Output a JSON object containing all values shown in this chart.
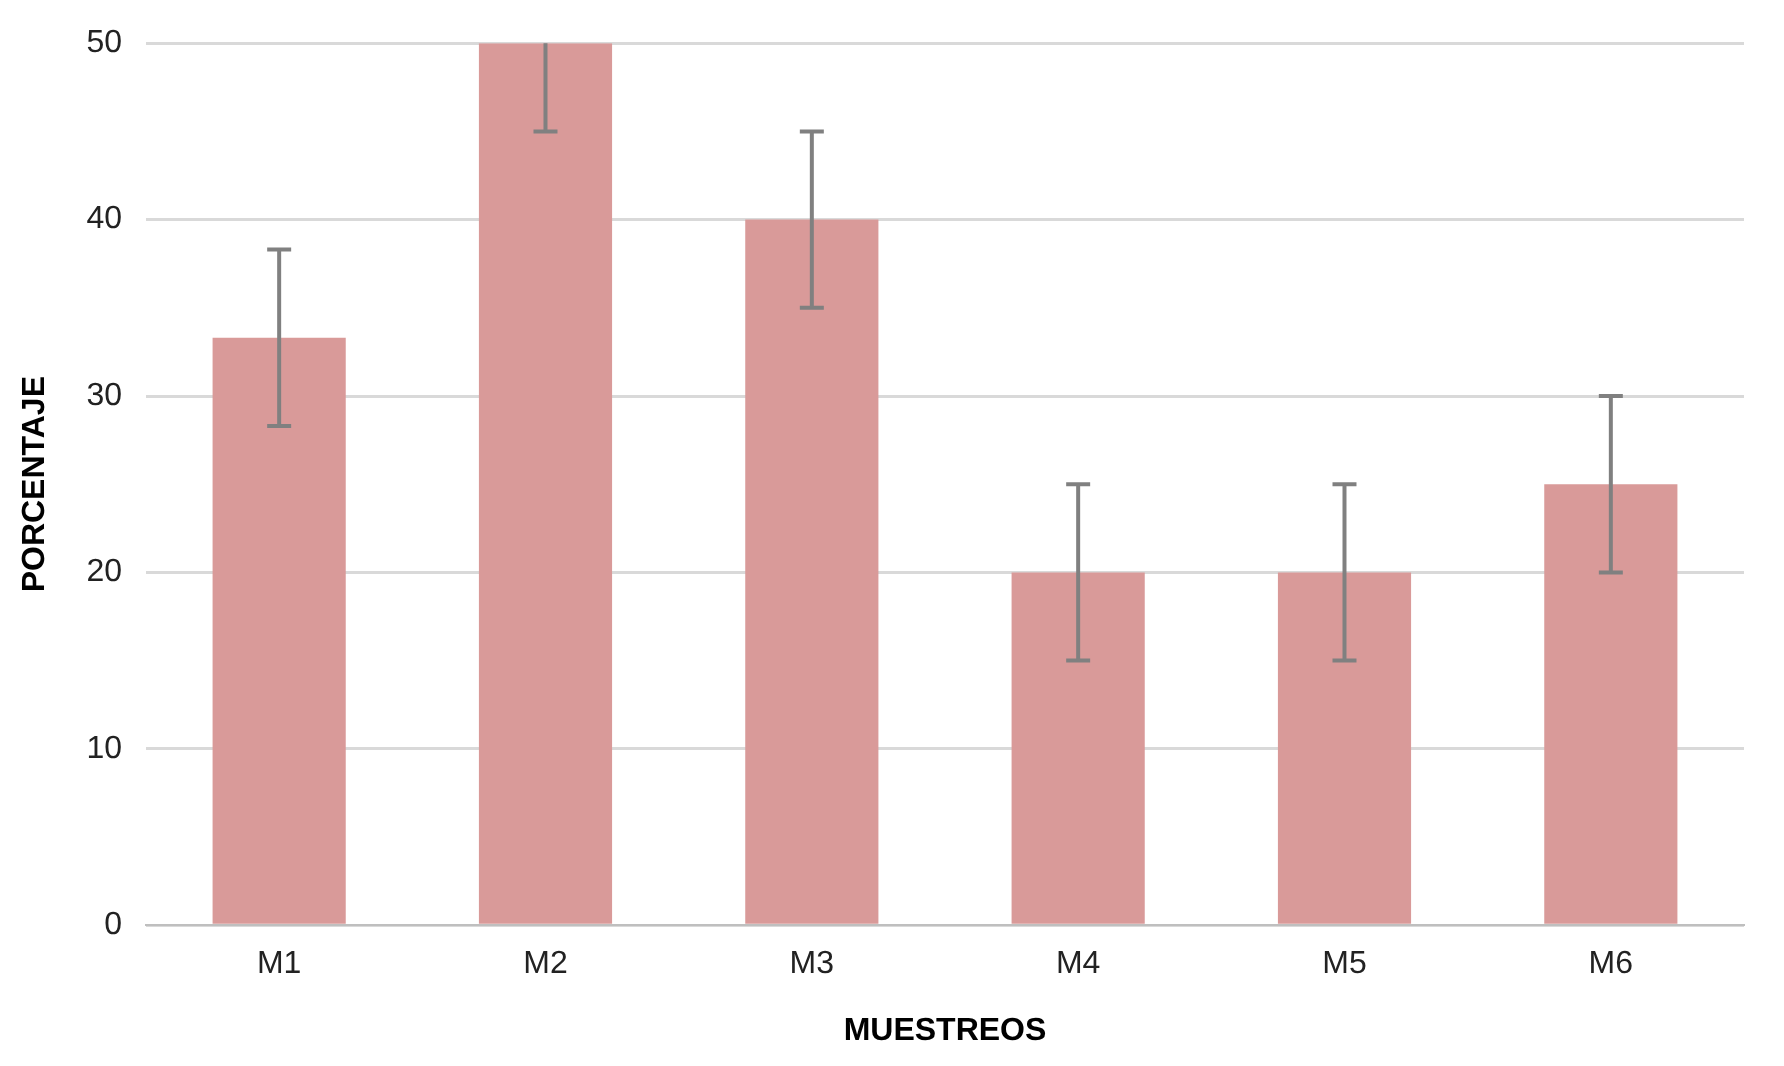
{
  "chart_data": {
    "type": "bar",
    "xlabel": "MUESTREOS",
    "ylabel": "PORCENTAJE",
    "categories": [
      "M1",
      "M2",
      "M3",
      "M4",
      "M5",
      "M6"
    ],
    "values": [
      33.3,
      50,
      40,
      20,
      20,
      25
    ],
    "errors": [
      5,
      [
        45,
        50
      ],
      5,
      5,
      5,
      5
    ],
    "color": "#d99a99",
    "ylim": [
      0,
      50
    ],
    "yticks": [
      0,
      10,
      20,
      30,
      40,
      50
    ],
    "grid": "y",
    "legend": false
  }
}
